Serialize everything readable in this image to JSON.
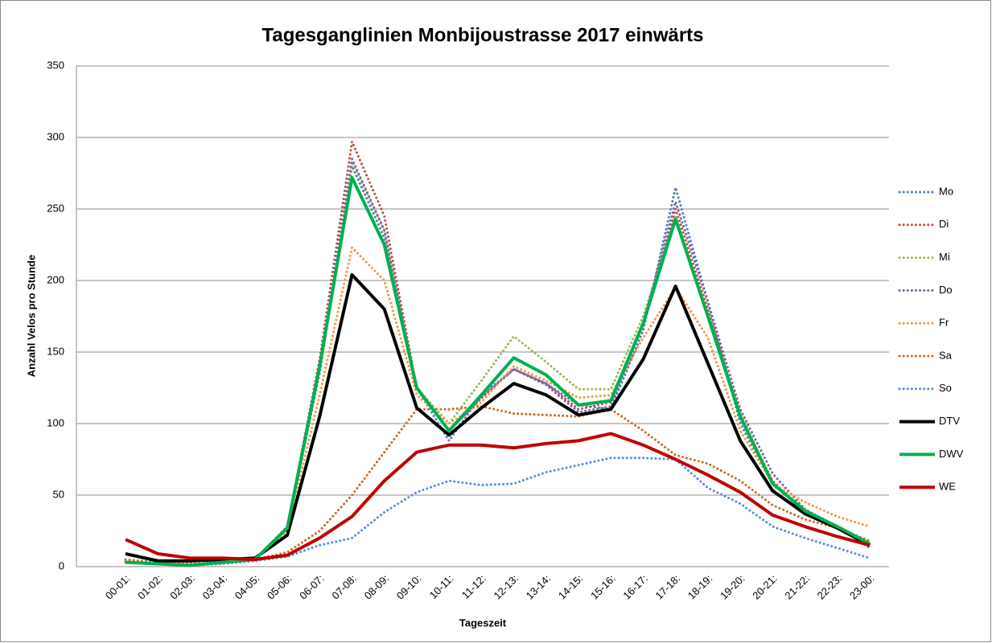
{
  "chart_data": {
    "type": "line",
    "title": "Tagesganglinien Monbijoustrasse 2017 einwärts",
    "x_label": "Tageszeit",
    "y_label": "Anzahl Velos pro Stunde",
    "categories": [
      "00-01:",
      "01-02:",
      "02-03:",
      "03-04:",
      "04-05:",
      "05-06:",
      "06-07:",
      "07-08:",
      "08-09:",
      "09-10:",
      "10-11:",
      "11-12:",
      "12-13:",
      "13-14:",
      "14-15:",
      "15-16:",
      "16-17:",
      "17-18:",
      "18-19:",
      "19-20:",
      "20-21:",
      "21-22:",
      "22-23:",
      "23-00:"
    ],
    "ylim": [
      0,
      350
    ],
    "yticks": [
      0,
      50,
      100,
      150,
      200,
      250,
      300,
      350
    ],
    "grid": true,
    "legend": "right",
    "series": [
      {
        "name": "Mo",
        "color": "#4f81bd",
        "dash": true,
        "values": [
          3,
          2,
          1,
          3,
          5,
          27,
          135,
          280,
          230,
          125,
          88,
          120,
          138,
          128,
          113,
          110,
          165,
          265,
          185,
          100,
          58,
          38,
          28,
          14
        ]
      },
      {
        "name": "Di",
        "color": "#c0504d",
        "dash": true,
        "values": [
          4,
          2,
          1,
          3,
          5,
          28,
          145,
          297,
          245,
          125,
          95,
          118,
          138,
          128,
          110,
          115,
          170,
          250,
          180,
          105,
          60,
          38,
          27,
          15
        ]
      },
      {
        "name": "Mi",
        "color": "#9bbb59",
        "dash": true,
        "values": [
          3,
          2,
          1,
          3,
          5,
          27,
          140,
          283,
          235,
          125,
          100,
          130,
          161,
          143,
          124,
          124,
          175,
          245,
          175,
          108,
          58,
          40,
          28,
          16
        ]
      },
      {
        "name": "Do",
        "color": "#8064a2",
        "dash": true,
        "values": [
          4,
          2,
          1,
          3,
          5,
          28,
          140,
          285,
          235,
          125,
          95,
          118,
          138,
          127,
          108,
          112,
          170,
          255,
          185,
          110,
          65,
          40,
          28,
          13
        ]
      },
      {
        "name": "Fr",
        "color": "#f79646",
        "dash": true,
        "values": [
          4,
          2,
          1,
          3,
          5,
          25,
          120,
          223,
          200,
          120,
          100,
          115,
          140,
          130,
          118,
          120,
          160,
          195,
          160,
          95,
          58,
          45,
          35,
          28
        ]
      },
      {
        "name": "Sa",
        "color": "#c96e29",
        "dash": true,
        "values": [
          5,
          3,
          2,
          3,
          5,
          10,
          25,
          50,
          80,
          110,
          110,
          112,
          107,
          106,
          105,
          110,
          95,
          78,
          72,
          60,
          43,
          33,
          27,
          18
        ]
      },
      {
        "name": "So",
        "color": "#5b8fd0",
        "dash": true,
        "values": [
          3,
          2,
          1,
          2,
          4,
          7,
          15,
          20,
          38,
          52,
          60,
          57,
          58,
          66,
          71,
          76,
          76,
          75,
          55,
          44,
          28,
          20,
          13,
          6
        ]
      },
      {
        "name": "DTV",
        "color": "#000000",
        "dash": false,
        "values": [
          9,
          4,
          4,
          5,
          6,
          22,
          105,
          204,
          180,
          111,
          92,
          111,
          128,
          120,
          106,
          110,
          145,
          196,
          142,
          88,
          53,
          37,
          27,
          15
        ]
      },
      {
        "name": "DWV",
        "color": "#00b050",
        "dash": false,
        "values": [
          3,
          2,
          1,
          3,
          5,
          27,
          140,
          272,
          225,
          125,
          95,
          120,
          146,
          134,
          113,
          116,
          170,
          243,
          175,
          105,
          58,
          39,
          28,
          16
        ]
      },
      {
        "name": "WE",
        "color": "#c00000",
        "dash": false,
        "values": [
          19,
          9,
          6,
          6,
          5,
          8,
          20,
          35,
          60,
          80,
          85,
          85,
          83,
          86,
          88,
          93,
          85,
          75,
          64,
          52,
          36,
          28,
          21,
          15
        ]
      }
    ]
  }
}
